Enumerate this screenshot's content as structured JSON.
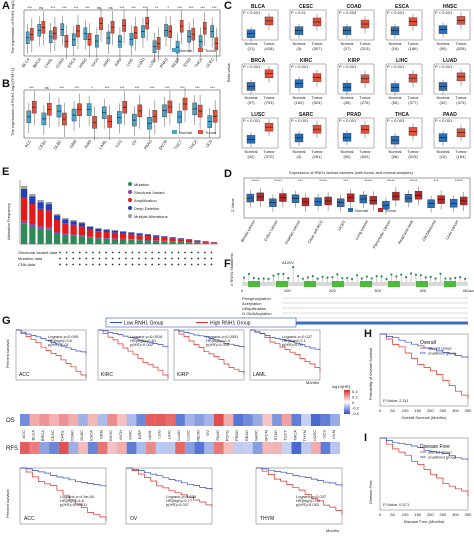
{
  "panels": {
    "A": "A",
    "B": "B",
    "C": "C",
    "D": "D",
    "E": "E",
    "F": "F",
    "G": "G",
    "H": "H",
    "I": "I"
  },
  "panelA": {
    "ylabel": "The expression of RNH1 log2(TPM+1)",
    "legend": [
      "Normal",
      "Tumor"
    ],
    "cancers": [
      "BLCA",
      "BRCA",
      "CHOL",
      "COAD",
      "ESCA",
      "HNSC",
      "KICH",
      "KIRC",
      "KIRP",
      "LIHC",
      "LUAD",
      "LUSC",
      "PRAD",
      "READ",
      "STAD",
      "THCA",
      "UCEC"
    ],
    "sig": [
      "***",
      "ns",
      "***",
      "***",
      "***",
      "***",
      "ns",
      "ns",
      "***",
      "***",
      "***",
      "**",
      "*",
      "***",
      "***",
      "***",
      "***"
    ]
  },
  "panelB": {
    "ylabel": "The expression of RNH1 log2(TPM+1)",
    "legend": [
      "Normal",
      "Tumor"
    ],
    "cancers": [
      "ACC",
      "CESC",
      "DLBC",
      "GBM",
      "KIRP",
      "LAML",
      "LGG",
      "OV",
      "PAAD",
      "SKCM",
      "TGCT",
      "THCA",
      "UCS"
    ],
    "sig": [
      "***",
      "ns",
      "***",
      "***",
      "*",
      "***",
      "***",
      "***",
      "***",
      "***",
      "***",
      "***",
      "***"
    ]
  },
  "panelC": {
    "ylabel": "Beta value",
    "groups": [
      "Normal",
      "Tumor"
    ],
    "plots": [
      {
        "name": "BLCA",
        "p": "P < 0.001",
        "n": [
          "(21)",
          "(418)"
        ]
      },
      {
        "name": "CESC",
        "p": "P = 0.01",
        "n": [
          "(3)",
          "(307)"
        ]
      },
      {
        "name": "COAD",
        "p": "P = 0.003",
        "n": [
          "(37)",
          "(313)"
        ]
      },
      {
        "name": "ESCA",
        "p": "P < 0.001",
        "n": [
          "(16)",
          "(186)"
        ]
      },
      {
        "name": "HNSC",
        "p": "P < 0.001",
        "n": [
          "(50)",
          "(528)"
        ]
      },
      {
        "name": "BRCA",
        "p": "P < 0.001",
        "n": [
          "(97)",
          "(793)"
        ]
      },
      {
        "name": "KIRC",
        "p": "P < 0.001",
        "n": [
          "(160)",
          "(324)"
        ]
      },
      {
        "name": "KIRP",
        "p": "P < 0.001",
        "n": [
          "(45)",
          "(276)"
        ]
      },
      {
        "name": "LIHC",
        "p": "P < 0.001",
        "n": [
          "(50)",
          "(377)"
        ]
      },
      {
        "name": "LUAD",
        "p": "P < 0.001",
        "n": [
          "(32)",
          "(473)"
        ]
      },
      {
        "name": "LUSC",
        "p": "P < 0.001",
        "n": [
          "(42)",
          "(370)"
        ]
      },
      {
        "name": "SARC",
        "p": "P < 0.001",
        "n": [
          "(4)",
          "(261)"
        ]
      },
      {
        "name": "PRAD",
        "p": "P < 0.001",
        "n": [
          "(50)",
          "(502)"
        ]
      },
      {
        "name": "THCA",
        "p": "P = 0.003",
        "n": [
          "(56)",
          "(515)"
        ]
      },
      {
        "name": "PAAD",
        "p": "P < 0.001",
        "n": [
          "(10)",
          "(184)"
        ]
      }
    ]
  },
  "panelD": {
    "title": "Expression of RNH1 across cancers (with tumor and normal samples)",
    "ylabel": "Z-Value",
    "legend": [
      "Normal",
      "Tumor"
    ],
    "cancers": [
      "Breast cancer",
      "Colon cancer",
      "Ovarian cancer",
      "Clear cell RCC",
      "UCEC",
      "Lung cancer",
      "Pancreatic cancer",
      "Head and neck",
      "Glioblastoma",
      "Liver cancer"
    ],
    "sig": [
      "*****",
      "*****",
      "***",
      "*****",
      "***",
      "*****",
      "*****",
      "*****",
      "***",
      "*****"
    ]
  },
  "panelE": {
    "ylabel": "Alteration Frequency",
    "legend": [
      "Mutation",
      "Structural Variant",
      "Amplification",
      "Deep Deletion",
      "Multiple Alterations"
    ],
    "rowlabels": [
      "Structural variant data",
      "Mutation data",
      "CNA data"
    ]
  },
  "panelF": {
    "ylabel": "# RNH1 Mutations",
    "mutation": "A120V",
    "axis": [
      "0",
      "100",
      "200",
      "300",
      "400",
      "461aa"
    ],
    "tracks": [
      "Phosphorylation",
      "Acetylation",
      "Ubiquitination",
      "O-GlcNAcylation",
      "S-nitrosylation",
      "Exon"
    ]
  },
  "panelG": {
    "legend_low": "Low RNH1 Group",
    "legend_high": "High RNH1 Group",
    "ylabel": "Percent survival",
    "xlabel": "Months",
    "row_os": "OS",
    "row_rfs": "RFS",
    "colorbar_title": "log10(HR)",
    "colorbar_ticks": [
      "0.4",
      "0.2",
      "0",
      "-0.2",
      "-0.4"
    ],
    "cancers": [
      "ACC",
      "BLCA",
      "BRCA",
      "CESC",
      "CHOL",
      "COAD",
      "DLBC",
      "ESCA",
      "GBM",
      "HNSC",
      "KICH",
      "KIRC",
      "KIRP",
      "LAML",
      "LGG",
      "LIHC",
      "LUAD",
      "LUSC",
      "MESO",
      "OV",
      "PAAD",
      "PCPG",
      "PRAD",
      "READ",
      "SARC",
      "SKCM",
      "STAD",
      "TGCT",
      "THCA",
      "THYM",
      "UCEC",
      "UCS",
      "UVM"
    ],
    "os_plots": [
      {
        "name": "ACC",
        "stats": [
          "Logrank p=0.005",
          "HR(high)=3.6",
          "p(HR)=0.01"
        ]
      },
      {
        "name": "KIRC",
        "stats": [
          "Logrank p=0.0016",
          "HR(high)=0.61",
          "p(HR)=0.002"
        ]
      },
      {
        "name": "KIRP",
        "stats": [
          "Logrank p=0.0051",
          "HR(high)=2.3",
          "p(HR)=0.006"
        ]
      },
      {
        "name": "LAML",
        "stats": [
          "Logrank p=0.027",
          "HR(high)=2.1",
          "p(HR)=0.03"
        ]
      }
    ],
    "rfs_plots": [
      {
        "name": "ACC",
        "stats": [
          "Logrank p=4.9e-06",
          "HR(high)=4.6",
          "p(HR)=0.00011"
        ]
      },
      {
        "name": "OV",
        "stats": [
          "Logrank p=0.036",
          "HR(high)=0.77",
          "p(HR)=0.037"
        ]
      },
      {
        "name": "THYM",
        "stats": [
          "Logrank p=0.037",
          "HR(high)=3.3",
          "p(HR)=0.052"
        ]
      }
    ]
  },
  "panelH": {
    "title": "Overall",
    "legend": [
      "altered group",
      "unaltered group"
    ],
    "ylabel": "Probability of Overall Survival",
    "xlabel": "Overall Survival (Months)",
    "pval": "P-Value: 2.111",
    "xticks": [
      "0",
      "50",
      "100",
      "150",
      "200",
      "250",
      "300",
      "350"
    ]
  },
  "panelI": {
    "title": "Disease Free",
    "legend": [
      "altered group",
      "unaltered group"
    ],
    "ylabel": "Disease Free",
    "xlabel": "Disease Free (Months)",
    "pval": "P-Value: 0.571",
    "xticks": [
      "0",
      "50",
      "100",
      "150",
      "200",
      "250",
      "300",
      "350"
    ]
  }
}
